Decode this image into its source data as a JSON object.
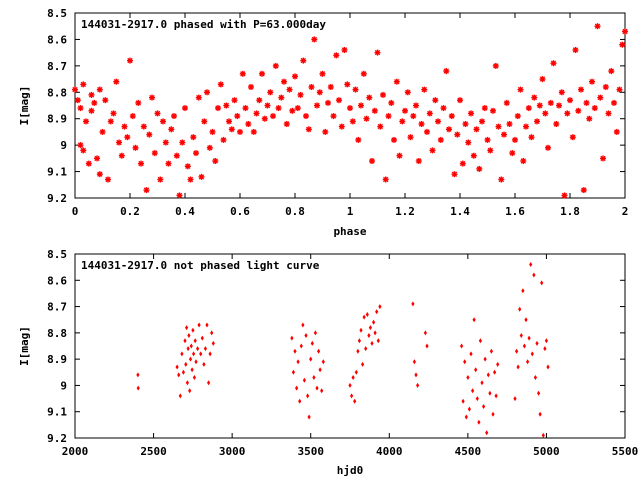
{
  "chart_data": [
    {
      "type": "scatter",
      "title": "144031-2917.0 phased with P=63.000day",
      "xlabel": "phase",
      "ylabel": "I[mag]",
      "xlim": [
        0,
        2
      ],
      "ylim": [
        8.5,
        9.2
      ],
      "y_inverted": true,
      "marker": "star",
      "color": "#ff0000",
      "x_ticks": [
        "0",
        "0.2",
        "0.4",
        "0.6",
        "0.8",
        "1",
        "1.2",
        "1.4",
        "1.6",
        "1.8",
        "2"
      ],
      "y_ticks": [
        "8.5",
        "8.6",
        "8.7",
        "8.8",
        "8.9",
        "9",
        "9.1",
        "9.2"
      ],
      "grid": false,
      "points": [
        [
          0.0,
          8.79
        ],
        [
          0.01,
          8.83
        ],
        [
          0.02,
          8.86
        ],
        [
          0.02,
          9.0
        ],
        [
          0.03,
          8.77
        ],
        [
          0.03,
          9.02
        ],
        [
          0.04,
          8.91
        ],
        [
          0.05,
          9.07
        ],
        [
          0.06,
          8.81
        ],
        [
          0.06,
          8.87
        ],
        [
          0.07,
          8.84
        ],
        [
          0.08,
          9.05
        ],
        [
          0.09,
          8.79
        ],
        [
          0.09,
          9.11
        ],
        [
          0.1,
          8.95
        ],
        [
          0.11,
          8.83
        ],
        [
          0.12,
          9.13
        ],
        [
          0.13,
          8.91
        ],
        [
          0.14,
          8.88
        ],
        [
          0.15,
          8.76
        ],
        [
          0.16,
          8.99
        ],
        [
          0.17,
          9.04
        ],
        [
          0.18,
          8.93
        ],
        [
          0.19,
          8.97
        ],
        [
          0.2,
          8.68
        ],
        [
          0.21,
          8.89
        ],
        [
          0.22,
          9.01
        ],
        [
          0.23,
          8.84
        ],
        [
          0.24,
          9.07
        ],
        [
          0.25,
          8.93
        ],
        [
          0.26,
          9.17
        ],
        [
          0.27,
          8.96
        ],
        [
          0.28,
          8.82
        ],
        [
          0.29,
          9.03
        ],
        [
          0.3,
          8.88
        ],
        [
          0.31,
          9.13
        ],
        [
          0.32,
          8.91
        ],
        [
          0.33,
          8.99
        ],
        [
          0.34,
          9.07
        ],
        [
          0.35,
          8.94
        ],
        [
          0.36,
          8.89
        ],
        [
          0.37,
          9.04
        ],
        [
          0.38,
          9.19
        ],
        [
          0.39,
          8.99
        ],
        [
          0.4,
          8.86
        ],
        [
          0.41,
          9.08
        ],
        [
          0.42,
          9.13
        ],
        [
          0.43,
          8.97
        ],
        [
          0.44,
          9.03
        ],
        [
          0.45,
          8.82
        ],
        [
          0.46,
          9.12
        ],
        [
          0.47,
          8.91
        ],
        [
          0.48,
          8.8
        ],
        [
          0.49,
          9.01
        ],
        [
          0.5,
          8.95
        ],
        [
          0.51,
          9.06
        ],
        [
          0.52,
          8.86
        ],
        [
          0.53,
          8.77
        ],
        [
          0.54,
          8.98
        ],
        [
          0.55,
          8.85
        ],
        [
          0.56,
          8.91
        ],
        [
          0.57,
          8.94
        ],
        [
          0.58,
          8.83
        ],
        [
          0.59,
          8.89
        ],
        [
          0.6,
          8.95
        ],
        [
          0.61,
          8.73
        ],
        [
          0.62,
          8.86
        ],
        [
          0.63,
          8.92
        ],
        [
          0.64,
          8.78
        ],
        [
          0.65,
          8.95
        ],
        [
          0.66,
          8.88
        ],
        [
          0.67,
          8.83
        ],
        [
          0.68,
          8.73
        ],
        [
          0.69,
          8.9
        ],
        [
          0.7,
          8.85
        ],
        [
          0.71,
          8.8
        ],
        [
          0.72,
          8.89
        ],
        [
          0.73,
          8.7
        ],
        [
          0.74,
          8.86
        ],
        [
          0.75,
          8.82
        ],
        [
          0.76,
          8.76
        ],
        [
          0.77,
          8.92
        ],
        [
          0.78,
          8.79
        ],
        [
          0.79,
          8.87
        ],
        [
          0.8,
          8.74
        ],
        [
          0.81,
          8.86
        ],
        [
          0.82,
          8.81
        ],
        [
          0.83,
          8.68
        ],
        [
          0.84,
          8.89
        ],
        [
          0.85,
          8.94
        ],
        [
          0.86,
          8.78
        ],
        [
          0.87,
          8.6
        ],
        [
          0.88,
          8.85
        ],
        [
          0.89,
          8.8
        ],
        [
          0.9,
          8.73
        ],
        [
          0.91,
          8.95
        ],
        [
          0.92,
          8.84
        ],
        [
          0.93,
          8.78
        ],
        [
          0.94,
          8.89
        ],
        [
          0.95,
          8.66
        ],
        [
          0.96,
          8.83
        ],
        [
          0.97,
          8.93
        ],
        [
          0.98,
          8.64
        ],
        [
          0.99,
          8.77
        ],
        [
          1.0,
          8.86
        ],
        [
          1.01,
          8.91
        ],
        [
          1.02,
          8.79
        ],
        [
          1.03,
          8.98
        ],
        [
          1.04,
          8.85
        ],
        [
          1.05,
          8.73
        ],
        [
          1.06,
          8.9
        ],
        [
          1.07,
          8.82
        ],
        [
          1.08,
          9.06
        ],
        [
          1.09,
          8.87
        ],
        [
          1.1,
          8.65
        ],
        [
          1.11,
          8.93
        ],
        [
          1.12,
          8.81
        ],
        [
          1.13,
          9.13
        ],
        [
          1.14,
          8.89
        ],
        [
          1.15,
          8.84
        ],
        [
          1.16,
          8.98
        ],
        [
          1.17,
          8.76
        ],
        [
          1.18,
          9.04
        ],
        [
          1.19,
          8.91
        ],
        [
          1.2,
          8.87
        ],
        [
          1.21,
          8.8
        ],
        [
          1.22,
          8.97
        ],
        [
          1.23,
          8.89
        ],
        [
          1.24,
          8.85
        ],
        [
          1.25,
          9.06
        ],
        [
          1.26,
          8.92
        ],
        [
          1.27,
          8.79
        ],
        [
          1.28,
          8.95
        ],
        [
          1.29,
          8.88
        ],
        [
          1.3,
          9.02
        ],
        [
          1.31,
          8.83
        ],
        [
          1.32,
          8.91
        ],
        [
          1.33,
          8.98
        ],
        [
          1.34,
          8.86
        ],
        [
          1.35,
          8.72
        ],
        [
          1.36,
          8.94
        ],
        [
          1.37,
          8.89
        ],
        [
          1.38,
          9.11
        ],
        [
          1.39,
          8.96
        ],
        [
          1.4,
          8.83
        ],
        [
          1.41,
          9.07
        ],
        [
          1.42,
          8.92
        ],
        [
          1.43,
          8.99
        ],
        [
          1.44,
          8.88
        ],
        [
          1.45,
          9.04
        ],
        [
          1.46,
          8.94
        ],
        [
          1.47,
          9.09
        ],
        [
          1.48,
          8.91
        ],
        [
          1.49,
          8.86
        ],
        [
          1.5,
          8.98
        ],
        [
          1.51,
          9.02
        ],
        [
          1.52,
          8.87
        ],
        [
          1.53,
          8.7
        ],
        [
          1.54,
          8.93
        ],
        [
          1.55,
          9.13
        ],
        [
          1.56,
          8.96
        ],
        [
          1.57,
          8.84
        ],
        [
          1.58,
          8.92
        ],
        [
          1.59,
          9.03
        ],
        [
          1.6,
          8.98
        ],
        [
          1.61,
          8.89
        ],
        [
          1.62,
          8.79
        ],
        [
          1.63,
          9.06
        ],
        [
          1.64,
          8.93
        ],
        [
          1.65,
          8.86
        ],
        [
          1.66,
          8.97
        ],
        [
          1.67,
          8.82
        ],
        [
          1.68,
          8.91
        ],
        [
          1.69,
          8.85
        ],
        [
          1.7,
          8.75
        ],
        [
          1.71,
          8.88
        ],
        [
          1.72,
          9.01
        ],
        [
          1.73,
          8.84
        ],
        [
          1.74,
          8.69
        ],
        [
          1.75,
          8.92
        ],
        [
          1.76,
          8.85
        ],
        [
          1.77,
          8.8
        ],
        [
          1.78,
          9.19
        ],
        [
          1.79,
          8.88
        ],
        [
          1.8,
          8.83
        ],
        [
          1.81,
          8.97
        ],
        [
          1.82,
          8.64
        ],
        [
          1.83,
          8.87
        ],
        [
          1.84,
          8.79
        ],
        [
          1.85,
          9.17
        ],
        [
          1.86,
          8.84
        ],
        [
          1.87,
          8.9
        ],
        [
          1.88,
          8.76
        ],
        [
          1.89,
          8.86
        ],
        [
          1.9,
          8.55
        ],
        [
          1.91,
          8.82
        ],
        [
          1.92,
          9.05
        ],
        [
          1.93,
          8.78
        ],
        [
          1.94,
          8.88
        ],
        [
          1.95,
          8.72
        ],
        [
          1.96,
          8.84
        ],
        [
          1.97,
          8.95
        ],
        [
          1.98,
          8.79
        ],
        [
          1.99,
          8.62
        ],
        [
          2.0,
          8.57
        ]
      ]
    },
    {
      "type": "scatter",
      "title": "144031-2917.0 not phased light curve",
      "xlabel": "hjd0",
      "ylabel": "I[mag]",
      "xlim": [
        2000,
        5500
      ],
      "ylim": [
        8.5,
        9.2
      ],
      "y_inverted": true,
      "marker": "diamond",
      "color": "#ff0000",
      "x_ticks": [
        "2000",
        "2500",
        "3000",
        "3500",
        "4000",
        "4500",
        "5000",
        "5500"
      ],
      "y_ticks": [
        "8.5",
        "8.6",
        "8.7",
        "8.8",
        "8.9",
        "9",
        "9.1",
        "9.2"
      ],
      "grid": false,
      "points": [
        [
          2400,
          8.96
        ],
        [
          2402,
          9.01
        ],
        [
          2650,
          8.93
        ],
        [
          2660,
          8.96
        ],
        [
          2670,
          9.04
        ],
        [
          2680,
          8.88
        ],
        [
          2690,
          8.95
        ],
        [
          2700,
          8.83
        ],
        [
          2705,
          8.92
        ],
        [
          2710,
          8.78
        ],
        [
          2715,
          8.99
        ],
        [
          2720,
          8.86
        ],
        [
          2725,
          8.81
        ],
        [
          2730,
          9.02
        ],
        [
          2735,
          8.9
        ],
        [
          2740,
          8.85
        ],
        [
          2745,
          8.94
        ],
        [
          2750,
          8.79
        ],
        [
          2755,
          8.88
        ],
        [
          2760,
          8.97
        ],
        [
          2765,
          8.83
        ],
        [
          2770,
          8.91
        ],
        [
          2780,
          8.86
        ],
        [
          2790,
          8.77
        ],
        [
          2800,
          8.88
        ],
        [
          2810,
          8.82
        ],
        [
          2820,
          8.92
        ],
        [
          2830,
          8.86
        ],
        [
          2840,
          8.77
        ],
        [
          2850,
          8.99
        ],
        [
          2860,
          8.88
        ],
        [
          2870,
          8.8
        ],
        [
          2880,
          8.84
        ],
        [
          3380,
          8.82
        ],
        [
          3390,
          8.95
        ],
        [
          3400,
          8.87
        ],
        [
          3410,
          9.01
        ],
        [
          3420,
          8.91
        ],
        [
          3430,
          9.06
        ],
        [
          3440,
          8.85
        ],
        [
          3450,
          8.77
        ],
        [
          3460,
          8.98
        ],
        [
          3470,
          8.81
        ],
        [
          3480,
          9.04
        ],
        [
          3490,
          9.12
        ],
        [
          3500,
          8.9
        ],
        [
          3510,
          8.84
        ],
        [
          3520,
          8.97
        ],
        [
          3530,
          8.8
        ],
        [
          3540,
          9.01
        ],
        [
          3550,
          8.87
        ],
        [
          3560,
          8.94
        ],
        [
          3570,
          9.02
        ],
        [
          3580,
          8.91
        ],
        [
          3750,
          9.0
        ],
        [
          3760,
          9.04
        ],
        [
          3770,
          8.97
        ],
        [
          3780,
          9.06
        ],
        [
          3790,
          8.95
        ],
        [
          3800,
          8.87
        ],
        [
          3810,
          8.83
        ],
        [
          3820,
          8.79
        ],
        [
          3830,
          8.92
        ],
        [
          3840,
          8.74
        ],
        [
          3850,
          8.86
        ],
        [
          3860,
          8.73
        ],
        [
          3870,
          8.81
        ],
        [
          3880,
          8.78
        ],
        [
          3890,
          8.84
        ],
        [
          3900,
          8.76
        ],
        [
          3910,
          8.8
        ],
        [
          3920,
          8.72
        ],
        [
          3930,
          8.83
        ],
        [
          3940,
          8.7
        ],
        [
          4150,
          8.69
        ],
        [
          4160,
          8.91
        ],
        [
          4170,
          8.96
        ],
        [
          4180,
          9.0
        ],
        [
          4230,
          8.8
        ],
        [
          4240,
          8.85
        ],
        [
          4460,
          8.85
        ],
        [
          4470,
          9.06
        ],
        [
          4480,
          8.91
        ],
        [
          4490,
          9.12
        ],
        [
          4500,
          8.97
        ],
        [
          4510,
          9.09
        ],
        [
          4520,
          8.88
        ],
        [
          4530,
          9.02
        ],
        [
          4540,
          8.75
        ],
        [
          4550,
          8.94
        ],
        [
          4560,
          9.05
        ],
        [
          4570,
          9.14
        ],
        [
          4580,
          8.83
        ],
        [
          4590,
          8.99
        ],
        [
          4600,
          9.08
        ],
        [
          4610,
          8.9
        ],
        [
          4620,
          9.18
        ],
        [
          4630,
          8.96
        ],
        [
          4640,
          9.03
        ],
        [
          4650,
          8.87
        ],
        [
          4660,
          9.11
        ],
        [
          4670,
          8.95
        ],
        [
          4680,
          9.04
        ],
        [
          4690,
          8.92
        ],
        [
          4800,
          9.05
        ],
        [
          4810,
          8.87
        ],
        [
          4820,
          8.93
        ],
        [
          4830,
          8.71
        ],
        [
          4840,
          8.81
        ],
        [
          4850,
          8.64
        ],
        [
          4860,
          8.85
        ],
        [
          4870,
          8.75
        ],
        [
          4880,
          8.91
        ],
        [
          4890,
          8.82
        ],
        [
          4900,
          8.54
        ],
        [
          4910,
          8.88
        ],
        [
          4920,
          8.58
        ],
        [
          4930,
          8.97
        ],
        [
          4940,
          8.84
        ],
        [
          4950,
          9.03
        ],
        [
          4960,
          9.11
        ],
        [
          4970,
          8.61
        ],
        [
          4980,
          9.19
        ],
        [
          4990,
          8.86
        ],
        [
          5000,
          8.83
        ],
        [
          5010,
          8.93
        ]
      ]
    }
  ]
}
